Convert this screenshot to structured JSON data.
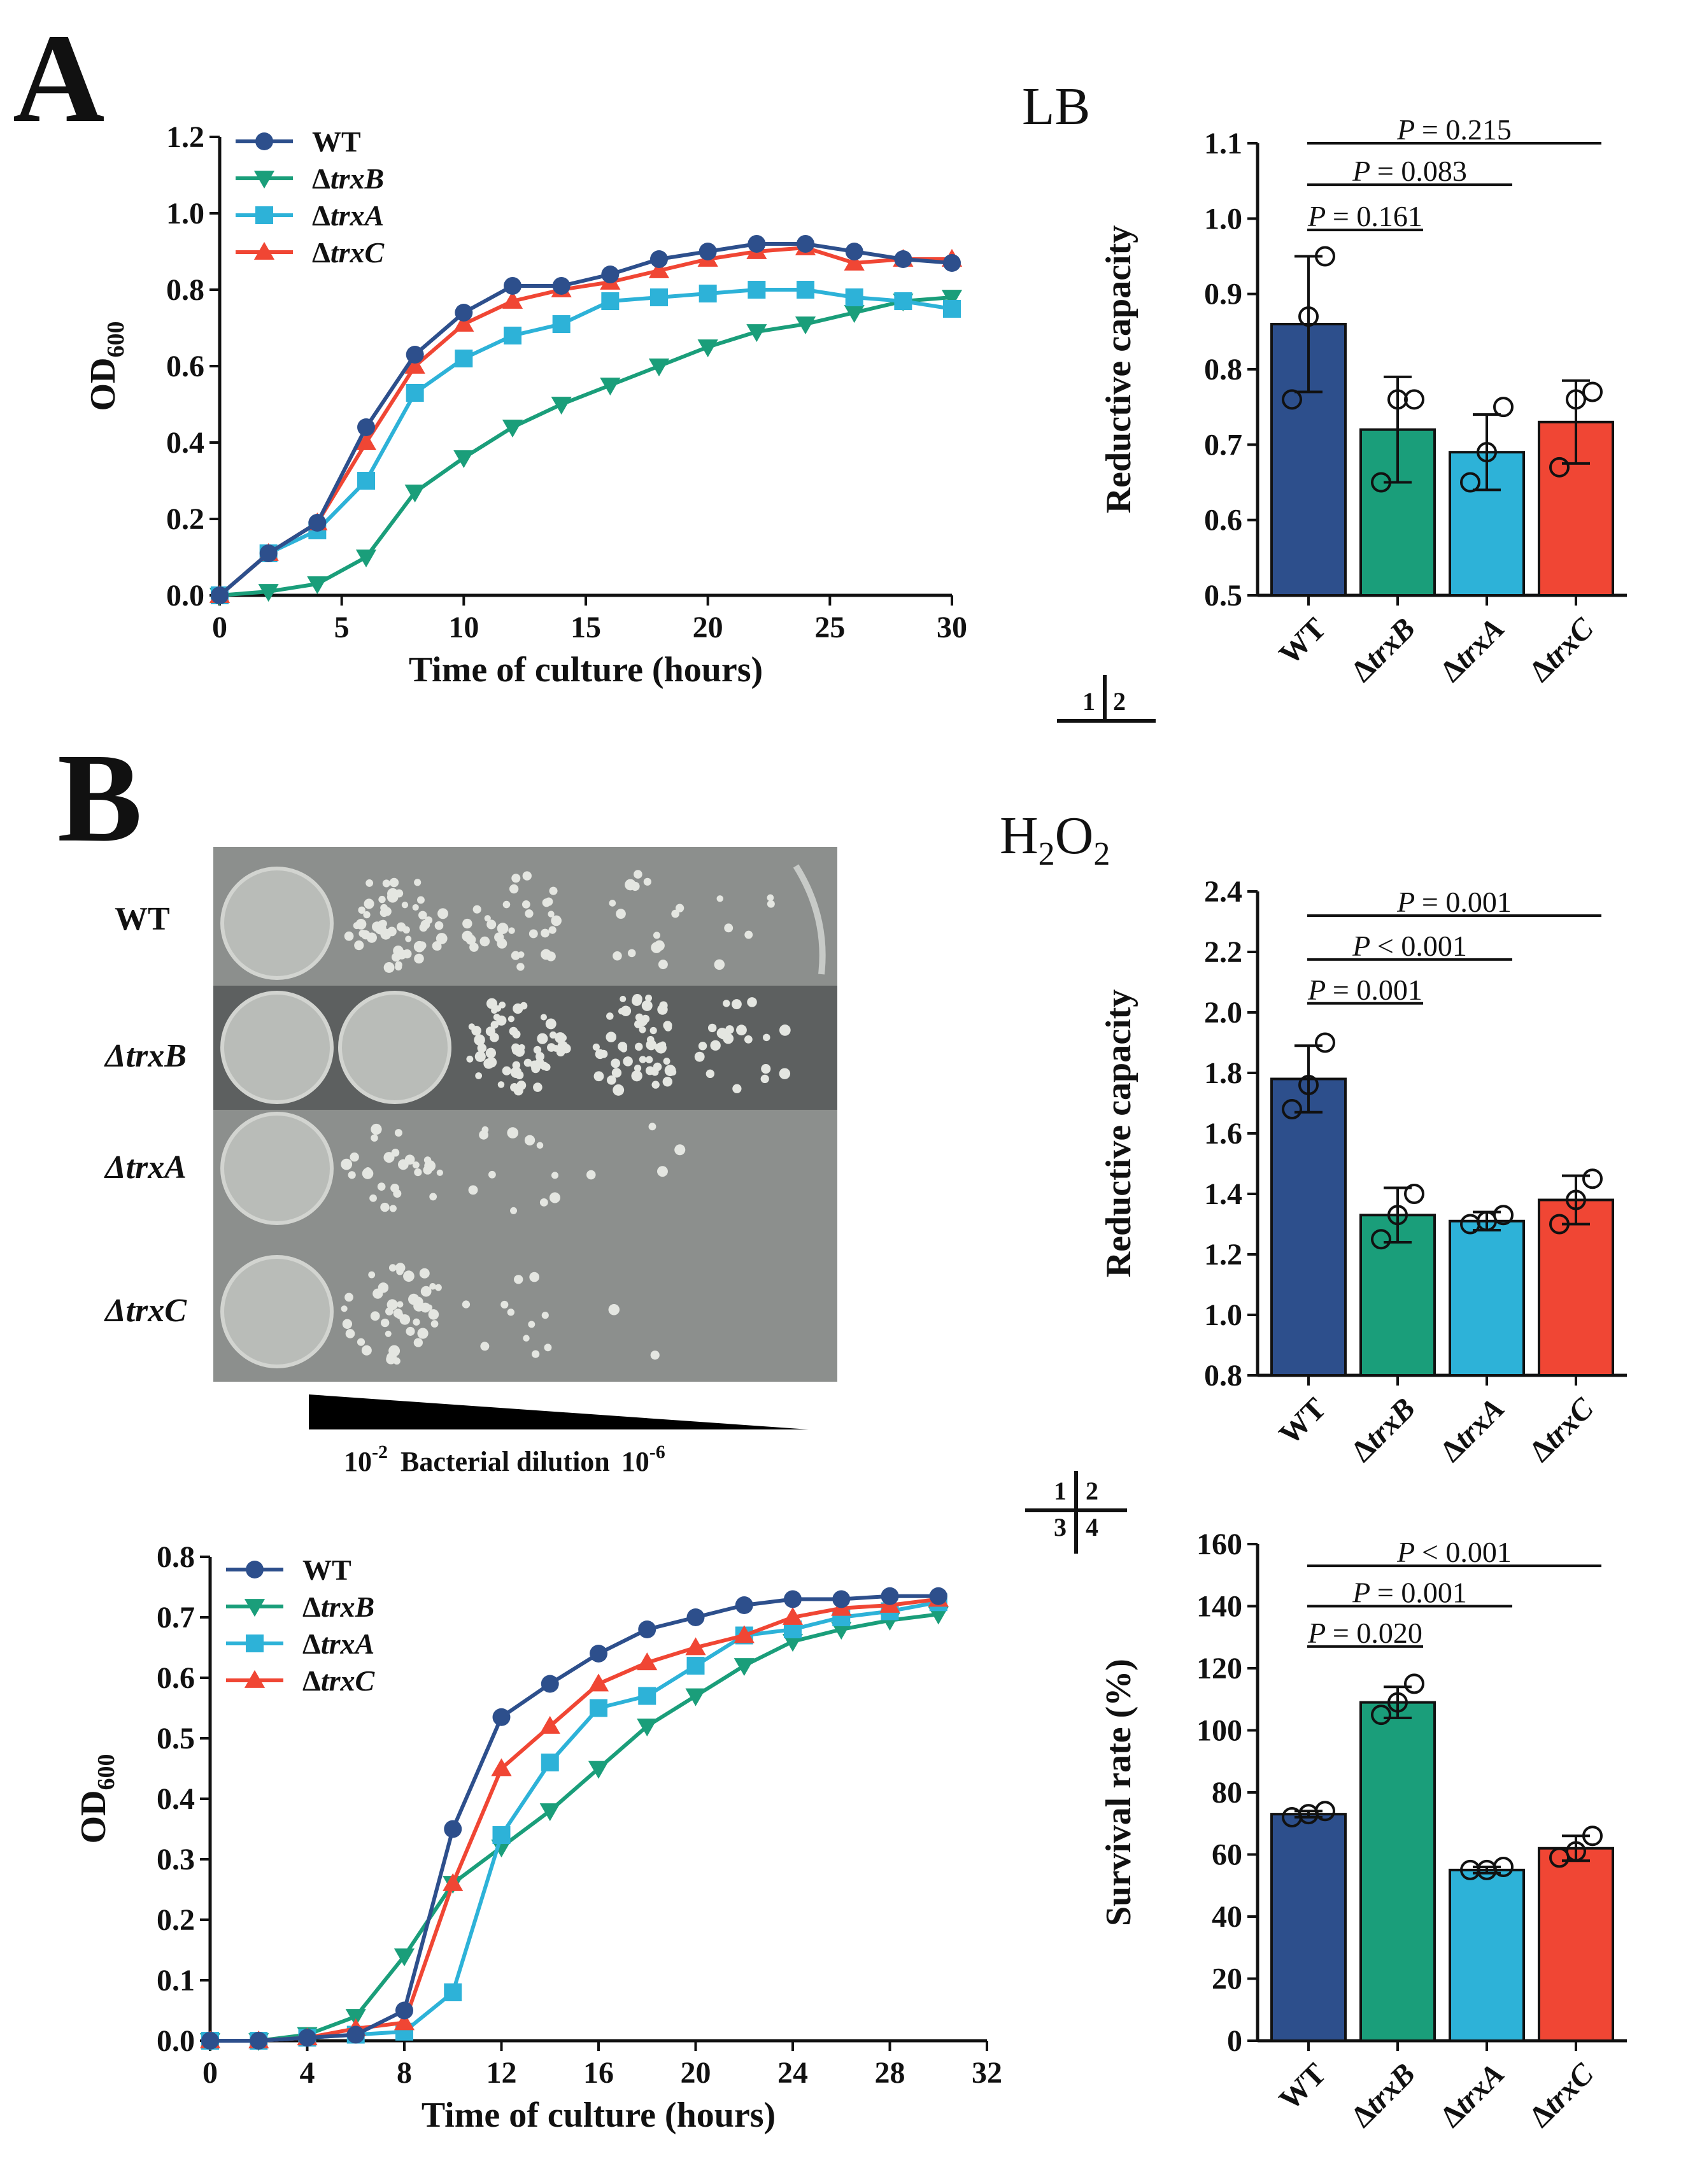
{
  "panels": {
    "a": "A",
    "b": "B"
  },
  "strains": [
    "WT",
    "ΔtrxB",
    "ΔtrxA",
    "ΔtrxC"
  ],
  "colors": {
    "WT": "#2d4f8c",
    "ΔtrxB": "#1a9e7a",
    "ΔtrxA": "#2db2d8",
    "ΔtrxC": "#f04634"
  },
  "markers": {
    "WT": "circle",
    "ΔtrxB": "triangle-down",
    "ΔtrxA": "square",
    "ΔtrxC": "triangle-up"
  },
  "quad_labels": {
    "one": "1",
    "two": "2",
    "three": "3",
    "four": "4"
  },
  "spot_assay": {
    "rows": [
      "WT",
      "ΔtrxB",
      "ΔtrxA",
      "ΔtrxC"
    ],
    "dilution_label": "Bacterial dilution",
    "dilution_start": "10",
    "dilution_start_exp": "-2",
    "dilution_end": "10",
    "dilution_end_exp": "-6"
  },
  "h2o2_title": {
    "main": "H",
    "sub1": "2",
    "mid": "O",
    "sub2": "2"
  },
  "chart_data": [
    {
      "id": "growth-lb",
      "type": "line",
      "title": "",
      "xlabel": "Time of culture (hours)",
      "ylabel": "OD",
      "ylabel_sub": "600",
      "xlim": [
        0,
        30
      ],
      "ylim": [
        0,
        1.2
      ],
      "xticks": [
        0,
        5,
        10,
        15,
        20,
        25,
        30
      ],
      "yticks": [
        0.0,
        0.2,
        0.4,
        0.6,
        0.8,
        1.0,
        1.2
      ],
      "ytick_decimals": 1,
      "x": [
        0,
        2,
        4,
        6,
        8,
        10,
        12,
        14,
        16,
        18,
        20,
        22,
        24,
        26,
        28,
        30
      ],
      "series": [
        {
          "name": "WT",
          "values": [
            0.0,
            0.11,
            0.19,
            0.44,
            0.63,
            0.74,
            0.81,
            0.81,
            0.84,
            0.88,
            0.9,
            0.92,
            0.92,
            0.9,
            0.88,
            0.87
          ]
        },
        {
          "name": "ΔtrxB",
          "values": [
            0.0,
            0.01,
            0.03,
            0.1,
            0.27,
            0.36,
            0.44,
            0.5,
            0.55,
            0.6,
            0.65,
            0.69,
            0.71,
            0.74,
            0.77,
            0.78
          ]
        },
        {
          "name": "ΔtrxA",
          "values": [
            0.0,
            0.11,
            0.17,
            0.3,
            0.53,
            0.62,
            0.68,
            0.71,
            0.77,
            0.78,
            0.79,
            0.8,
            0.8,
            0.78,
            0.77,
            0.75
          ]
        },
        {
          "name": "ΔtrxC",
          "values": [
            0.0,
            0.11,
            0.19,
            0.4,
            0.6,
            0.71,
            0.77,
            0.8,
            0.82,
            0.85,
            0.88,
            0.9,
            0.91,
            0.87,
            0.88,
            0.88
          ]
        }
      ]
    },
    {
      "id": "reductive-lb",
      "type": "bar",
      "title": "LB",
      "xlabel": "",
      "ylabel": "Reductive capacity",
      "categories": [
        "WT",
        "ΔtrxB",
        "ΔtrxA",
        "ΔtrxC"
      ],
      "values": [
        0.86,
        0.72,
        0.69,
        0.73
      ],
      "errors": [
        0.09,
        0.07,
        0.05,
        0.055
      ],
      "points": [
        [
          0.76,
          0.87,
          0.95
        ],
        [
          0.65,
          0.76,
          0.76
        ],
        [
          0.65,
          0.69,
          0.75
        ],
        [
          0.67,
          0.76,
          0.77
        ]
      ],
      "ylim": [
        0.5,
        1.1
      ],
      "yticks": [
        0.5,
        0.6,
        0.7,
        0.8,
        0.9,
        1.0,
        1.1
      ],
      "ytick_decimals": 1,
      "comparisons": [
        {
          "from": 0,
          "to": 3,
          "y": 1.1,
          "text": "= 0.215"
        },
        {
          "from": 0,
          "to": 2,
          "y": 1.045,
          "text": "= 0.083"
        },
        {
          "from": 0,
          "to": 1,
          "y": 0.985,
          "text": "= 0.161"
        }
      ]
    },
    {
      "id": "reductive-h2o2",
      "type": "bar",
      "title": "H2O2",
      "xlabel": "",
      "ylabel": "Reductive capacity",
      "categories": [
        "WT",
        "ΔtrxB",
        "ΔtrxA",
        "ΔtrxC"
      ],
      "values": [
        1.78,
        1.33,
        1.31,
        1.38
      ],
      "errors": [
        0.11,
        0.09,
        0.03,
        0.08
      ],
      "points": [
        [
          1.68,
          1.76,
          1.9
        ],
        [
          1.25,
          1.33,
          1.4
        ],
        [
          1.3,
          1.31,
          1.33
        ],
        [
          1.3,
          1.38,
          1.45
        ]
      ],
      "ylim": [
        0.8,
        2.4
      ],
      "yticks": [
        0.8,
        1.0,
        1.2,
        1.4,
        1.6,
        1.8,
        2.0,
        2.2,
        2.4
      ],
      "ytick_decimals": 1,
      "comparisons": [
        {
          "from": 0,
          "to": 3,
          "y": 2.32,
          "text": "= 0.001"
        },
        {
          "from": 0,
          "to": 2,
          "y": 2.175,
          "text": "< 0.001"
        },
        {
          "from": 0,
          "to": 1,
          "y": 2.03,
          "text": "= 0.001"
        }
      ]
    },
    {
      "id": "growth-h2o2",
      "type": "line",
      "title": "",
      "xlabel": "Time of culture (hours)",
      "ylabel": "OD",
      "ylabel_sub": "600",
      "xlim": [
        0,
        32
      ],
      "ylim": [
        0,
        0.8
      ],
      "xticks": [
        0,
        4,
        8,
        12,
        16,
        20,
        24,
        28,
        32
      ],
      "yticks": [
        0.0,
        0.1,
        0.2,
        0.3,
        0.4,
        0.5,
        0.6,
        0.7,
        0.8
      ],
      "ytick_decimals": 1,
      "x": [
        0,
        2,
        4,
        6,
        8,
        10,
        12,
        14,
        16,
        18,
        20,
        22,
        24,
        26,
        28,
        30
      ],
      "series": [
        {
          "name": "WT",
          "values": [
            0.0,
            0.0,
            0.005,
            0.01,
            0.05,
            0.35,
            0.535,
            0.59,
            0.64,
            0.68,
            0.7,
            0.72,
            0.73,
            0.73,
            0.735,
            0.735
          ]
        },
        {
          "name": "ΔtrxB",
          "values": [
            0.0,
            0.0,
            0.01,
            0.04,
            0.14,
            0.26,
            0.32,
            0.38,
            0.45,
            0.52,
            0.57,
            0.62,
            0.66,
            0.68,
            0.695,
            0.705
          ]
        },
        {
          "name": "ΔtrxA",
          "values": [
            0.0,
            0.0,
            0.005,
            0.01,
            0.015,
            0.08,
            0.34,
            0.46,
            0.55,
            0.57,
            0.62,
            0.67,
            0.68,
            0.7,
            0.71,
            0.725
          ]
        },
        {
          "name": "ΔtrxC",
          "values": [
            0.0,
            0.0,
            0.005,
            0.02,
            0.03,
            0.26,
            0.45,
            0.52,
            0.59,
            0.625,
            0.65,
            0.67,
            0.7,
            0.715,
            0.72,
            0.73
          ]
        }
      ]
    },
    {
      "id": "survival-h2o2",
      "type": "bar",
      "title": "",
      "xlabel": "",
      "ylabel": "Survival rate (%)",
      "categories": [
        "WT",
        "ΔtrxB",
        "ΔtrxA",
        "ΔtrxC"
      ],
      "values": [
        73,
        109,
        55,
        62
      ],
      "errors": [
        1,
        5,
        1,
        4
      ],
      "points": [
        [
          72,
          73,
          74
        ],
        [
          105,
          109,
          115
        ],
        [
          55,
          55,
          56
        ],
        [
          59,
          61,
          66
        ]
      ],
      "ylim": [
        0,
        160
      ],
      "yticks": [
        0,
        20,
        40,
        60,
        80,
        100,
        120,
        140,
        160
      ],
      "ytick_decimals": 0,
      "comparisons": [
        {
          "from": 0,
          "to": 3,
          "y": 153,
          "text": "< 0.001"
        },
        {
          "from": 0,
          "to": 2,
          "y": 140,
          "text": "= 0.001"
        },
        {
          "from": 0,
          "to": 1,
          "y": 127,
          "text": "= 0.020"
        }
      ]
    }
  ]
}
